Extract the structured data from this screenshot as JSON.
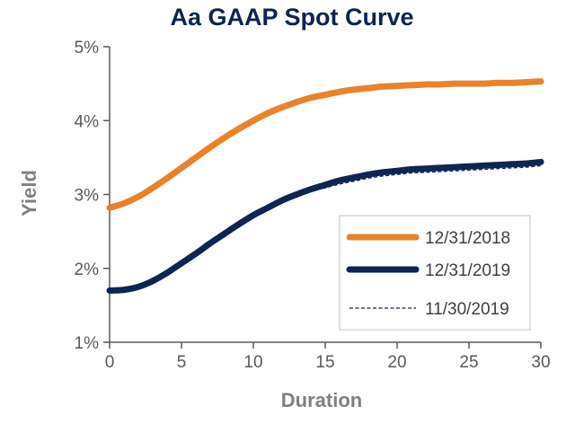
{
  "chart_data": {
    "type": "line",
    "title": "Aa GAAP Spot Curve",
    "xlabel": "Duration",
    "ylabel": "Yield",
    "xlim": [
      0,
      30
    ],
    "ylim": [
      1,
      5
    ],
    "x_ticks": [
      0,
      5,
      10,
      15,
      20,
      25,
      30
    ],
    "x_tick_labels": [
      "0",
      "5",
      "10",
      "15",
      "20",
      "25",
      "30"
    ],
    "y_ticks": [
      1,
      2,
      3,
      4,
      5
    ],
    "y_tick_labels": [
      "1%",
      "2%",
      "3%",
      "4%",
      "5%"
    ],
    "grid": false,
    "legend_position": "bottom-right",
    "x": [
      0,
      1,
      2,
      3,
      4,
      5,
      6,
      7,
      8,
      9,
      10,
      11,
      12,
      13,
      14,
      15,
      16,
      17,
      18,
      19,
      20,
      21,
      22,
      23,
      24,
      25,
      26,
      27,
      28,
      29,
      30
    ],
    "series": [
      {
        "name": "12/31/2018",
        "color": "#E9822B",
        "style": "solid",
        "values": [
          2.82,
          2.88,
          2.97,
          3.09,
          3.22,
          3.36,
          3.5,
          3.64,
          3.77,
          3.89,
          4.0,
          4.1,
          4.18,
          4.25,
          4.31,
          4.35,
          4.39,
          4.42,
          4.44,
          4.46,
          4.47,
          4.48,
          4.49,
          4.49,
          4.5,
          4.5,
          4.5,
          4.51,
          4.51,
          4.52,
          4.53
        ]
      },
      {
        "name": "12/31/2019",
        "color": "#0D2550",
        "style": "solid",
        "values": [
          1.7,
          1.71,
          1.75,
          1.83,
          1.94,
          2.07,
          2.2,
          2.34,
          2.47,
          2.6,
          2.72,
          2.82,
          2.92,
          3.0,
          3.07,
          3.13,
          3.19,
          3.23,
          3.27,
          3.3,
          3.32,
          3.34,
          3.35,
          3.36,
          3.37,
          3.38,
          3.39,
          3.4,
          3.41,
          3.42,
          3.44
        ]
      },
      {
        "name": "11/30/2019",
        "color": "#0D2550",
        "style": "dashed",
        "values": [
          1.7,
          1.71,
          1.74,
          1.81,
          1.91,
          2.03,
          2.16,
          2.3,
          2.43,
          2.56,
          2.68,
          2.79,
          2.89,
          2.97,
          3.04,
          3.09,
          3.14,
          3.18,
          3.22,
          3.25,
          3.27,
          3.29,
          3.3,
          3.31,
          3.32,
          3.33,
          3.34,
          3.35,
          3.36,
          3.37,
          3.39
        ]
      }
    ]
  },
  "colors": {
    "title": "#0D2550",
    "axis": "#595959"
  }
}
